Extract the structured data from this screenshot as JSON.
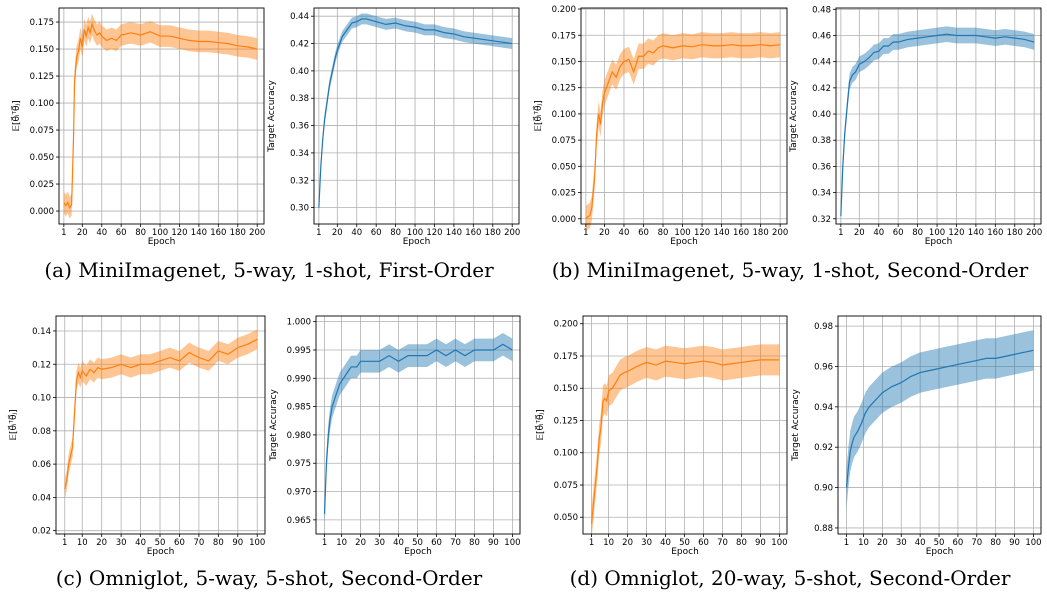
{
  "panels": [
    {
      "caption": "(a) MiniImagenet, 5-way, 1-shot, First-Order"
    },
    {
      "caption": "(b) MiniImagenet, 5-way, 1-shot, Second-Order"
    },
    {
      "caption": "(c) Omniglot, 5-way, 5-shot, Second-Order"
    },
    {
      "caption": "(d) Omniglot, 20-way, 5-shot, Second-Order"
    }
  ],
  "colors": {
    "inner_product": "#ff7f0e",
    "target_accuracy": "#1f77b4",
    "grid": "#b0b0b0"
  },
  "chart_data": [
    {
      "type": "line",
      "xlabel": "Epoch",
      "ylabel": "𝔼[θ⃗ᵢᵀθ⃗ⱼ]",
      "grid": true,
      "color": "orange",
      "xticks": [
        1,
        20,
        40,
        60,
        80,
        100,
        120,
        140,
        160,
        180,
        200
      ],
      "xlim": [
        -4,
        207
      ],
      "yticks": [
        "0.000",
        "0.025",
        "0.050",
        "0.075",
        "0.100",
        "0.125",
        "0.150",
        "0.175"
      ],
      "ylim": [
        -0.012,
        0.188
      ],
      "series": [
        {
          "x": [
            1,
            3,
            5,
            7,
            9,
            11,
            12,
            14,
            16,
            18,
            20,
            22,
            24,
            26,
            28,
            30,
            32,
            35,
            38,
            40,
            45,
            50,
            55,
            60,
            70,
            80,
            90,
            100,
            110,
            120,
            130,
            140,
            150,
            160,
            170,
            180,
            190,
            200
          ],
          "y": [
            0.008,
            0.005,
            0.008,
            0.003,
            0.006,
            0.07,
            0.12,
            0.142,
            0.148,
            0.16,
            0.152,
            0.168,
            0.162,
            0.17,
            0.165,
            0.173,
            0.168,
            0.163,
            0.165,
            0.162,
            0.158,
            0.16,
            0.158,
            0.163,
            0.165,
            0.163,
            0.166,
            0.162,
            0.162,
            0.16,
            0.158,
            0.157,
            0.157,
            0.156,
            0.155,
            0.153,
            0.152,
            0.15
          ],
          "band": 0.01
        }
      ]
    },
    {
      "type": "line",
      "xlabel": "Epoch",
      "ylabel": "Target Accuracy",
      "grid": true,
      "color": "blue",
      "xticks": [
        1,
        20,
        40,
        60,
        80,
        100,
        120,
        140,
        160,
        180,
        200
      ],
      "xlim": [
        -4,
        207
      ],
      "yticks": [
        "0.30",
        "0.32",
        "0.34",
        "0.36",
        "0.38",
        "0.40",
        "0.42",
        "0.44"
      ],
      "ylim": [
        0.288,
        0.446
      ],
      "series": [
        {
          "x": [
            1,
            3,
            5,
            7,
            10,
            12,
            15,
            18,
            20,
            25,
            30,
            35,
            40,
            45,
            50,
            55,
            60,
            70,
            80,
            90,
            100,
            110,
            120,
            130,
            140,
            150,
            160,
            170,
            180,
            190,
            200
          ],
          "y": [
            0.3,
            0.33,
            0.35,
            0.365,
            0.38,
            0.39,
            0.4,
            0.41,
            0.415,
            0.425,
            0.43,
            0.435,
            0.436,
            0.438,
            0.438,
            0.437,
            0.436,
            0.434,
            0.435,
            0.433,
            0.432,
            0.43,
            0.43,
            0.428,
            0.427,
            0.425,
            0.424,
            0.423,
            0.422,
            0.421,
            0.42
          ],
          "band": 0.004
        }
      ]
    },
    {
      "type": "line",
      "xlabel": "Epoch",
      "ylabel": "𝔼[θ⃗ᵢᵀθ⃗ⱼ]",
      "grid": true,
      "color": "orange",
      "xticks": [
        1,
        20,
        40,
        60,
        80,
        100,
        120,
        140,
        160,
        180,
        200
      ],
      "xlim": [
        -4,
        207
      ],
      "yticks": [
        "0.000",
        "0.025",
        "0.050",
        "0.075",
        "0.100",
        "0.125",
        "0.150",
        "0.175",
        "0.200"
      ],
      "ylim": [
        -0.005,
        0.201
      ],
      "series": [
        {
          "x": [
            1,
            3,
            5,
            7,
            10,
            12,
            14,
            16,
            18,
            20,
            24,
            28,
            32,
            36,
            40,
            45,
            50,
            55,
            60,
            65,
            70,
            75,
            80,
            90,
            100,
            110,
            120,
            130,
            140,
            150,
            160,
            170,
            180,
            190,
            200
          ],
          "y": [
            0.0,
            0.002,
            0.003,
            0.01,
            0.04,
            0.08,
            0.1,
            0.09,
            0.11,
            0.12,
            0.13,
            0.14,
            0.135,
            0.145,
            0.15,
            0.152,
            0.14,
            0.155,
            0.155,
            0.16,
            0.158,
            0.163,
            0.165,
            0.163,
            0.165,
            0.164,
            0.166,
            0.165,
            0.165,
            0.166,
            0.165,
            0.165,
            0.166,
            0.165,
            0.166
          ],
          "band": 0.012
        }
      ]
    },
    {
      "type": "line",
      "xlabel": "Epoch",
      "ylabel": "Target Accuracy",
      "grid": true,
      "color": "blue",
      "xticks": [
        1,
        20,
        40,
        60,
        80,
        100,
        120,
        140,
        160,
        180,
        200
      ],
      "xlim": [
        -4,
        207
      ],
      "yticks": [
        "0.32",
        "0.34",
        "0.36",
        "0.38",
        "0.40",
        "0.42",
        "0.44",
        "0.46",
        "0.48"
      ],
      "ylim": [
        0.316,
        0.481
      ],
      "series": [
        {
          "x": [
            1,
            3,
            5,
            8,
            10,
            13,
            16,
            20,
            25,
            30,
            35,
            40,
            45,
            50,
            55,
            60,
            70,
            80,
            90,
            100,
            110,
            120,
            130,
            140,
            150,
            160,
            170,
            180,
            190,
            200
          ],
          "y": [
            0.322,
            0.36,
            0.385,
            0.41,
            0.425,
            0.43,
            0.432,
            0.438,
            0.44,
            0.443,
            0.447,
            0.448,
            0.452,
            0.452,
            0.455,
            0.455,
            0.457,
            0.458,
            0.459,
            0.46,
            0.461,
            0.46,
            0.46,
            0.46,
            0.459,
            0.458,
            0.459,
            0.458,
            0.457,
            0.455
          ],
          "band": 0.006
        }
      ]
    },
    {
      "type": "line",
      "xlabel": "Epoch",
      "ylabel": "𝔼[θ⃗ᵢᵀθ⃗ⱼ]",
      "grid": true,
      "color": "orange",
      "xticks": [
        1,
        10,
        20,
        30,
        40,
        50,
        60,
        70,
        80,
        90,
        100
      ],
      "xlim": [
        -3.5,
        104
      ],
      "yticks": [
        "0.02",
        "0.04",
        "0.06",
        "0.08",
        "0.10",
        "0.12",
        "0.14"
      ],
      "ylim": [
        0.018,
        0.149
      ],
      "series": [
        {
          "x": [
            1,
            2,
            3,
            4,
            5,
            6,
            7,
            8,
            9,
            10,
            12,
            14,
            16,
            18,
            20,
            25,
            30,
            35,
            40,
            45,
            50,
            55,
            60,
            65,
            70,
            75,
            80,
            85,
            90,
            95,
            100
          ],
          "y": [
            0.045,
            0.05,
            0.06,
            0.065,
            0.07,
            0.09,
            0.11,
            0.115,
            0.112,
            0.116,
            0.113,
            0.117,
            0.115,
            0.118,
            0.117,
            0.118,
            0.12,
            0.118,
            0.12,
            0.12,
            0.122,
            0.124,
            0.122,
            0.127,
            0.124,
            0.122,
            0.128,
            0.126,
            0.13,
            0.132,
            0.135
          ],
          "band": 0.006
        }
      ]
    },
    {
      "type": "line",
      "xlabel": "Epoch",
      "ylabel": "Target Accuracy",
      "grid": true,
      "color": "blue",
      "xticks": [
        1,
        10,
        20,
        30,
        40,
        50,
        60,
        70,
        80,
        90,
        100
      ],
      "xlim": [
        -3.5,
        104
      ],
      "yticks": [
        "0.965",
        "0.970",
        "0.975",
        "0.980",
        "0.985",
        "0.990",
        "0.995",
        "1.000"
      ],
      "ylim": [
        0.9625,
        1.001
      ],
      "series": [
        {
          "x": [
            1,
            2,
            3,
            4,
            5,
            7,
            9,
            11,
            13,
            15,
            18,
            20,
            25,
            30,
            35,
            40,
            45,
            50,
            55,
            60,
            65,
            70,
            75,
            80,
            85,
            90,
            95,
            100
          ],
          "y": [
            0.966,
            0.975,
            0.98,
            0.983,
            0.985,
            0.987,
            0.989,
            0.99,
            0.991,
            0.992,
            0.992,
            0.993,
            0.993,
            0.993,
            0.994,
            0.993,
            0.994,
            0.994,
            0.994,
            0.995,
            0.994,
            0.995,
            0.994,
            0.995,
            0.995,
            0.995,
            0.996,
            0.995
          ],
          "band": 0.002
        }
      ]
    },
    {
      "type": "line",
      "xlabel": "Epoch",
      "ylabel": "𝔼[θ⃗ᵢᵀθ⃗ⱼ]",
      "grid": true,
      "color": "orange",
      "xticks": [
        1,
        10,
        20,
        30,
        40,
        50,
        60,
        70,
        80,
        90,
        100
      ],
      "xlim": [
        -3.5,
        104
      ],
      "yticks": [
        "0.050",
        "0.075",
        "0.100",
        "0.125",
        "0.150",
        "0.175",
        "0.200"
      ],
      "ylim": [
        0.037,
        0.206
      ],
      "series": [
        {
          "x": [
            1,
            2,
            3,
            4,
            5,
            6,
            7,
            8,
            9,
            10,
            12,
            14,
            16,
            18,
            20,
            25,
            30,
            35,
            40,
            45,
            50,
            55,
            60,
            65,
            70,
            75,
            80,
            85,
            90,
            95,
            100
          ],
          "y": [
            0.045,
            0.06,
            0.075,
            0.09,
            0.11,
            0.12,
            0.14,
            0.142,
            0.14,
            0.148,
            0.15,
            0.155,
            0.16,
            0.162,
            0.163,
            0.167,
            0.17,
            0.168,
            0.171,
            0.17,
            0.169,
            0.17,
            0.171,
            0.17,
            0.168,
            0.169,
            0.17,
            0.171,
            0.172,
            0.172,
            0.172
          ],
          "band": 0.012
        }
      ]
    },
    {
      "type": "line",
      "xlabel": "Epoch",
      "ylabel": "Target Accuracy",
      "grid": true,
      "color": "blue",
      "xticks": [
        1,
        10,
        20,
        30,
        40,
        50,
        60,
        70,
        80,
        90,
        100
      ],
      "xlim": [
        -3.5,
        104
      ],
      "yticks": [
        "0.88",
        "0.90",
        "0.92",
        "0.94",
        "0.96",
        "0.98"
      ],
      "ylim": [
        0.877,
        0.985
      ],
      "series": [
        {
          "x": [
            1,
            2,
            3,
            4,
            5,
            7,
            9,
            11,
            13,
            15,
            18,
            20,
            25,
            30,
            35,
            40,
            45,
            50,
            55,
            60,
            65,
            70,
            75,
            80,
            85,
            90,
            95,
            100
          ],
          "y": [
            0.9,
            0.91,
            0.918,
            0.922,
            0.925,
            0.928,
            0.932,
            0.937,
            0.94,
            0.942,
            0.945,
            0.947,
            0.95,
            0.952,
            0.955,
            0.957,
            0.958,
            0.959,
            0.96,
            0.961,
            0.962,
            0.963,
            0.964,
            0.964,
            0.965,
            0.966,
            0.967,
            0.968
          ],
          "band": 0.01
        }
      ]
    }
  ]
}
